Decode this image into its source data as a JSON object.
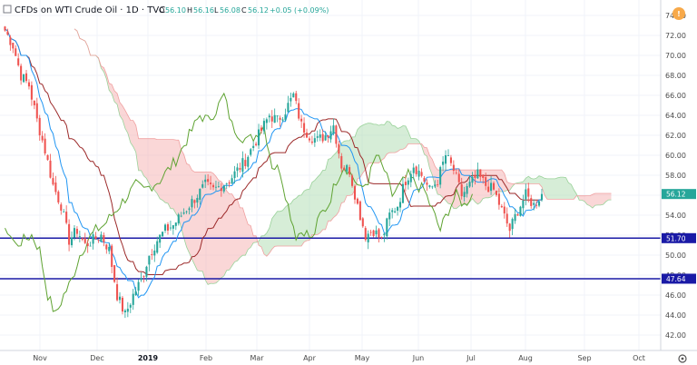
{
  "header": {
    "title": "CFDs on WTI Crude Oil · 1D · TVC",
    "o_label": "O",
    "o_value": "56.10",
    "h_label": "H",
    "h_value": "56.16",
    "l_label": "L",
    "l_value": "56.08",
    "c_label": "C",
    "c_value": "56.12",
    "change": "+0.05 (+0.09%)"
  },
  "colors": {
    "up": "#26a69a",
    "down": "#ef5350",
    "tenkan": "#2196f3",
    "kijun": "#9c2a2a",
    "chikou": "#5fa332",
    "cloud_bull": "#a5d6a7",
    "cloud_bear": "#f4a7a7",
    "hline": "#1a1aa6",
    "last_price_bg": "#26a69a"
  },
  "chart_data": {
    "type": "candlestick",
    "title": "CFDs on WTI Crude Oil · 1D · TVC",
    "ylim": [
      41,
      75
    ],
    "y_ticks": [
      42.0,
      44.0,
      46.0,
      48.0,
      50.0,
      52.0,
      54.0,
      56.0,
      58.0,
      60.0,
      62.0,
      64.0,
      66.0,
      68.0,
      70.0,
      72.0,
      74.0
    ],
    "x_ticks": [
      "Nov",
      "Dec",
      "2019",
      "Feb",
      "Mar",
      "Apr",
      "May",
      "Jun",
      "Jul",
      "Aug",
      "Sep",
      "Oct"
    ],
    "horizontal_lines": [
      51.7,
      47.64
    ],
    "last_price": 56.12,
    "price_path": [
      [
        0,
        72.5
      ],
      [
        3,
        71.0
      ],
      [
        6,
        68.0
      ],
      [
        9,
        67.0
      ],
      [
        12,
        63.5
      ],
      [
        15,
        60.5
      ],
      [
        18,
        57.0
      ],
      [
        21,
        55.0
      ],
      [
        24,
        51.5
      ],
      [
        27,
        52.5
      ],
      [
        30,
        51.0
      ],
      [
        33,
        51.5
      ],
      [
        36,
        52.0
      ],
      [
        39,
        50.5
      ],
      [
        42,
        46.0
      ],
      [
        45,
        44.0
      ],
      [
        48,
        46.0
      ],
      [
        51,
        47.5
      ],
      [
        54,
        50.0
      ],
      [
        57,
        51.5
      ],
      [
        60,
        52.5
      ],
      [
        63,
        53.0
      ],
      [
        66,
        54.0
      ],
      [
        69,
        55.0
      ],
      [
        72,
        56.0
      ],
      [
        75,
        57.0
      ],
      [
        78,
        56.5
      ],
      [
        81,
        57.0
      ],
      [
        84,
        57.5
      ],
      [
        87,
        58.5
      ],
      [
        90,
        59.5
      ],
      [
        93,
        61.0
      ],
      [
        96,
        62.5
      ],
      [
        99,
        64.0
      ],
      [
        102,
        63.5
      ],
      [
        105,
        64.5
      ],
      [
        108,
        66.0
      ],
      [
        111,
        63.0
      ],
      [
        114,
        62.0
      ],
      [
        117,
        61.5
      ],
      [
        120,
        62.0
      ],
      [
        123,
        63.0
      ],
      [
        126,
        59.0
      ],
      [
        129,
        58.5
      ],
      [
        132,
        55.0
      ],
      [
        135,
        52.0
      ],
      [
        138,
        52.5
      ],
      [
        141,
        51.5
      ],
      [
        144,
        54.0
      ],
      [
        147,
        55.0
      ],
      [
        150,
        57.5
      ],
      [
        153,
        59.0
      ],
      [
        156,
        58.0
      ],
      [
        159,
        56.5
      ],
      [
        162,
        57.5
      ],
      [
        165,
        60.0
      ],
      [
        168,
        58.5
      ],
      [
        171,
        56.0
      ],
      [
        174,
        57.0
      ],
      [
        177,
        58.0
      ],
      [
        180,
        57.0
      ],
      [
        183,
        56.5
      ],
      [
        186,
        54.5
      ],
      [
        189,
        52.5
      ],
      [
        192,
        54.5
      ],
      [
        195,
        56.0
      ],
      [
        198,
        55.0
      ],
      [
        201,
        56.12
      ]
    ]
  }
}
